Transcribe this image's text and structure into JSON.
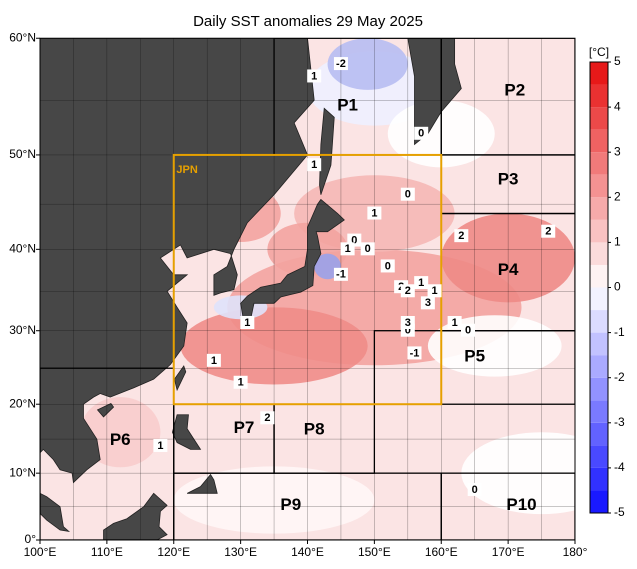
{
  "map": {
    "title": "Daily SST anomalies 29 May 2025",
    "lon_ticks": [
      {
        "value": 100,
        "label": "100°E"
      },
      {
        "value": 110,
        "label": "110°E"
      },
      {
        "value": 120,
        "label": "120°E"
      },
      {
        "value": 130,
        "label": "130°E"
      },
      {
        "value": 140,
        "label": "140°E"
      },
      {
        "value": 150,
        "label": "150°E"
      },
      {
        "value": 160,
        "label": "160°E"
      },
      {
        "value": 170,
        "label": "170°E"
      },
      {
        "value": 180,
        "label": "180°"
      }
    ],
    "lat_ticks": [
      {
        "value": 0,
        "label": "0°"
      },
      {
        "value": 10,
        "label": "10°N"
      },
      {
        "value": 20,
        "label": "20°N"
      },
      {
        "value": 30,
        "label": "30°N"
      },
      {
        "value": 40,
        "label": "40°N"
      },
      {
        "value": 50,
        "label": "50°N"
      },
      {
        "value": 60,
        "label": "60°N"
      }
    ],
    "regions": [
      "JPN",
      "P1",
      "P2",
      "P3",
      "P4",
      "P5",
      "P6",
      "P7",
      "P8",
      "P9",
      "P10"
    ],
    "contour_labels": [
      -2,
      1,
      1,
      0,
      0,
      1,
      0,
      1,
      2,
      2,
      3,
      1,
      2,
      -1,
      0,
      1,
      0,
      -1,
      1,
      2,
      1,
      3,
      1,
      0,
      1,
      2,
      0,
      0,
      1
    ],
    "colorbar": {
      "label": "[°C]",
      "range": [
        -5,
        5
      ],
      "ticks": [
        5,
        4,
        3,
        2,
        1,
        0,
        -1,
        -2,
        -3,
        -4,
        -5
      ]
    }
  }
}
